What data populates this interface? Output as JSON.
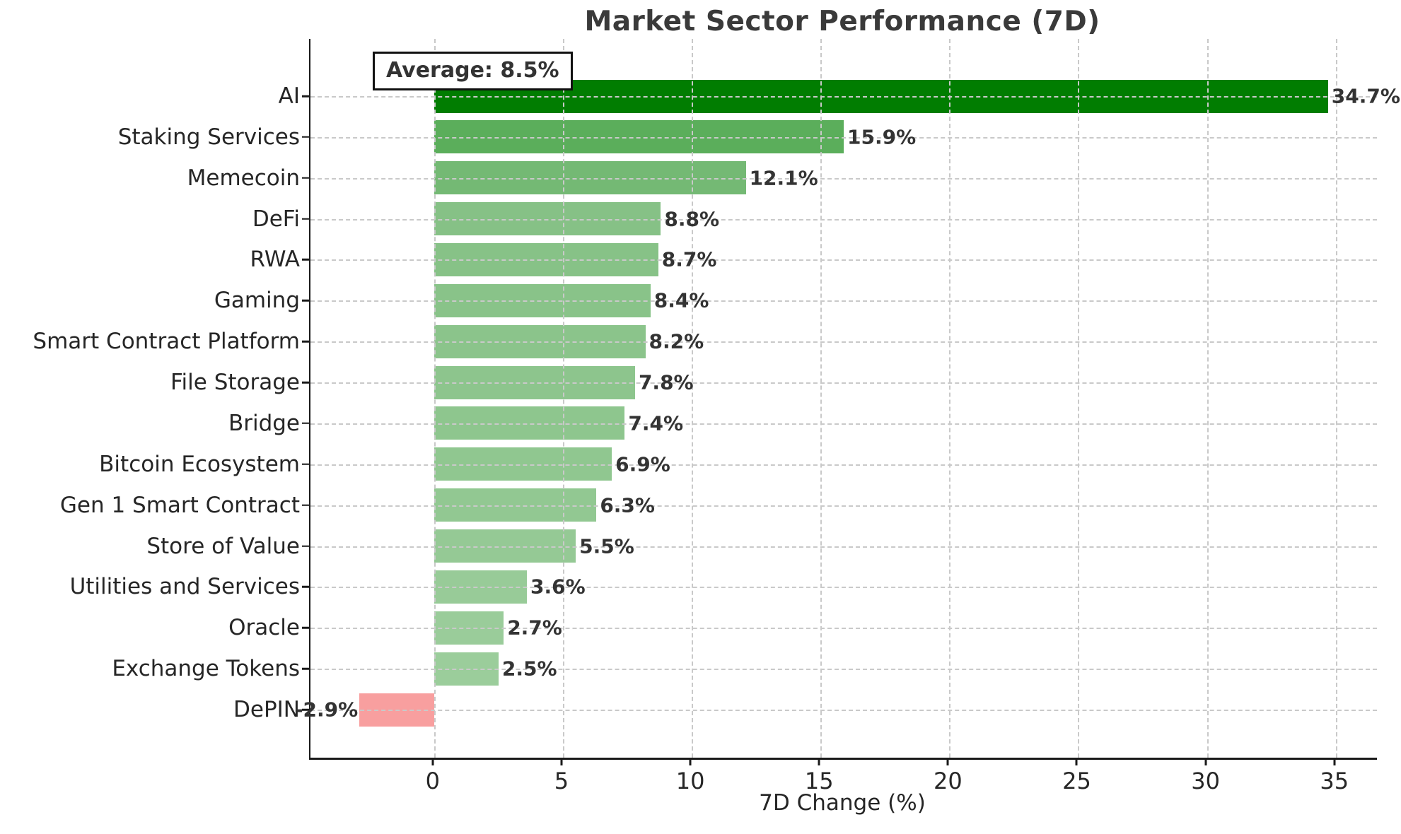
{
  "chart_data": {
    "type": "bar",
    "orientation": "horizontal",
    "title": "Market Sector Performance (7D)",
    "xlabel": "7D Change (%)",
    "ylabel": "",
    "annotation_label": "Average: 8.5%",
    "average_value": 8.5,
    "grid": true,
    "legend": "none",
    "xlim": [
      -4.8,
      36.6
    ],
    "x_ticks": [
      0,
      5,
      10,
      15,
      20,
      25,
      30,
      35
    ],
    "categories": [
      "AI",
      "Staking Services",
      "Memecoin",
      "DeFi",
      "RWA",
      "Gaming",
      "Smart Contract Platform",
      "File Storage",
      "Bridge",
      "Bitcoin Ecosystem",
      "Gen 1 Smart Contract",
      "Store of Value",
      "Utilities and Services",
      "Oracle",
      "Exchange Tokens",
      "DePIN"
    ],
    "values": [
      34.7,
      15.9,
      12.1,
      8.8,
      8.7,
      8.4,
      8.2,
      7.8,
      7.4,
      6.9,
      6.3,
      5.5,
      3.6,
      2.7,
      2.5,
      -2.9
    ],
    "value_labels": [
      "34.7%",
      "15.9%",
      "12.1%",
      "8.8%",
      "8.7%",
      "8.4%",
      "8.2%",
      "7.8%",
      "7.4%",
      "6.9%",
      "6.3%",
      "5.5%",
      "3.6%",
      "2.7%",
      "2.5%",
      "-2.9%"
    ],
    "bar_colors": [
      "#017d01",
      "#5bae5b",
      "#74b974",
      "#86c186",
      "#87c287",
      "#89c389",
      "#8bc48b",
      "#8dc58d",
      "#8ec68e",
      "#90c790",
      "#92c892",
      "#95c995",
      "#98cb98",
      "#9acc9a",
      "#9bcd9b",
      "#f89f9f"
    ],
    "colors": {
      "positive_max": "#017d01",
      "positive_min": "#9bcd9b",
      "negative": "#f89f9f",
      "gridline": "#c9c9c9",
      "spine": "#1a1a1a",
      "title_text": "#3a3a3a",
      "value_label_text": "#333333",
      "tick_text": "#262626"
    }
  }
}
